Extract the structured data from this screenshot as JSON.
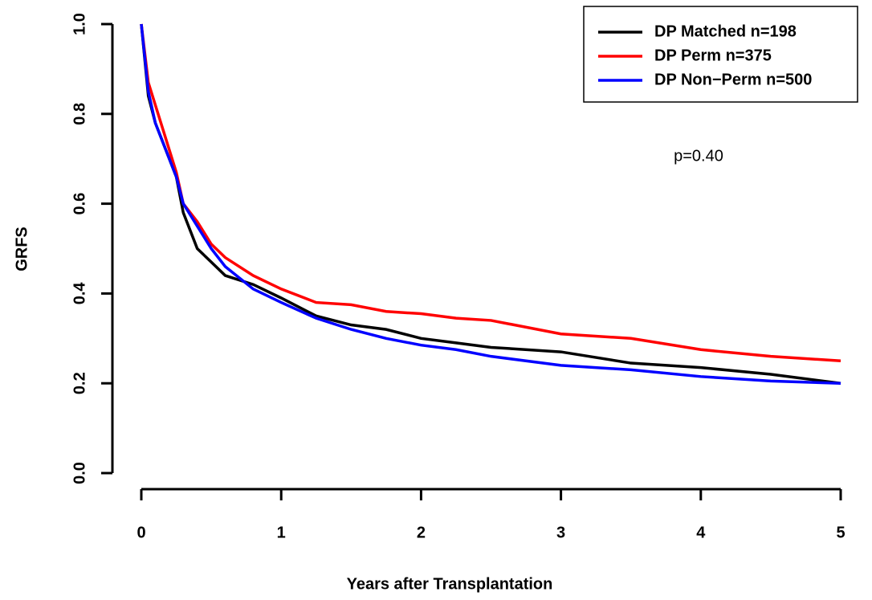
{
  "chart_data": {
    "type": "line",
    "xlabel": "Years after Transplantation",
    "ylabel": "GRFS",
    "annotation": "p=0.40",
    "x": [
      0,
      0.05,
      0.1,
      0.15,
      0.2,
      0.25,
      0.3,
      0.4,
      0.5,
      0.6,
      0.8,
      1.0,
      1.25,
      1.5,
      1.75,
      2,
      2.25,
      2.5,
      3,
      3.5,
      4,
      4.5,
      5
    ],
    "series": [
      {
        "name": "DP Matched n=198",
        "color": "#000000",
        "values": [
          1.0,
          0.84,
          0.78,
          0.74,
          0.7,
          0.66,
          0.58,
          0.5,
          0.47,
          0.44,
          0.42,
          0.39,
          0.35,
          0.33,
          0.32,
          0.3,
          0.29,
          0.28,
          0.27,
          0.245,
          0.235,
          0.22,
          0.2
        ]
      },
      {
        "name": "DP Perm n=375",
        "color": "#ff0000",
        "values": [
          1.0,
          0.87,
          0.82,
          0.77,
          0.72,
          0.67,
          0.6,
          0.56,
          0.51,
          0.48,
          0.44,
          0.41,
          0.38,
          0.375,
          0.36,
          0.355,
          0.345,
          0.34,
          0.31,
          0.3,
          0.275,
          0.26,
          0.25
        ]
      },
      {
        "name": "DP Non−Perm n=500",
        "color": "#0000ff",
        "values": [
          1.0,
          0.85,
          0.78,
          0.74,
          0.7,
          0.66,
          0.6,
          0.55,
          0.5,
          0.46,
          0.41,
          0.38,
          0.345,
          0.32,
          0.3,
          0.285,
          0.275,
          0.26,
          0.24,
          0.23,
          0.215,
          0.205,
          0.2
        ]
      }
    ],
    "xlim": [
      0,
      5
    ],
    "xticks": [
      0,
      1,
      2,
      3,
      4,
      5
    ],
    "ylim": [
      0,
      1
    ],
    "yticks": [
      {
        "value": 0,
        "label": "0.0"
      },
      0.2,
      0.4,
      0.6,
      0.8,
      {
        "value": 1,
        "label": "1.0"
      }
    ],
    "legend": "top-right"
  }
}
